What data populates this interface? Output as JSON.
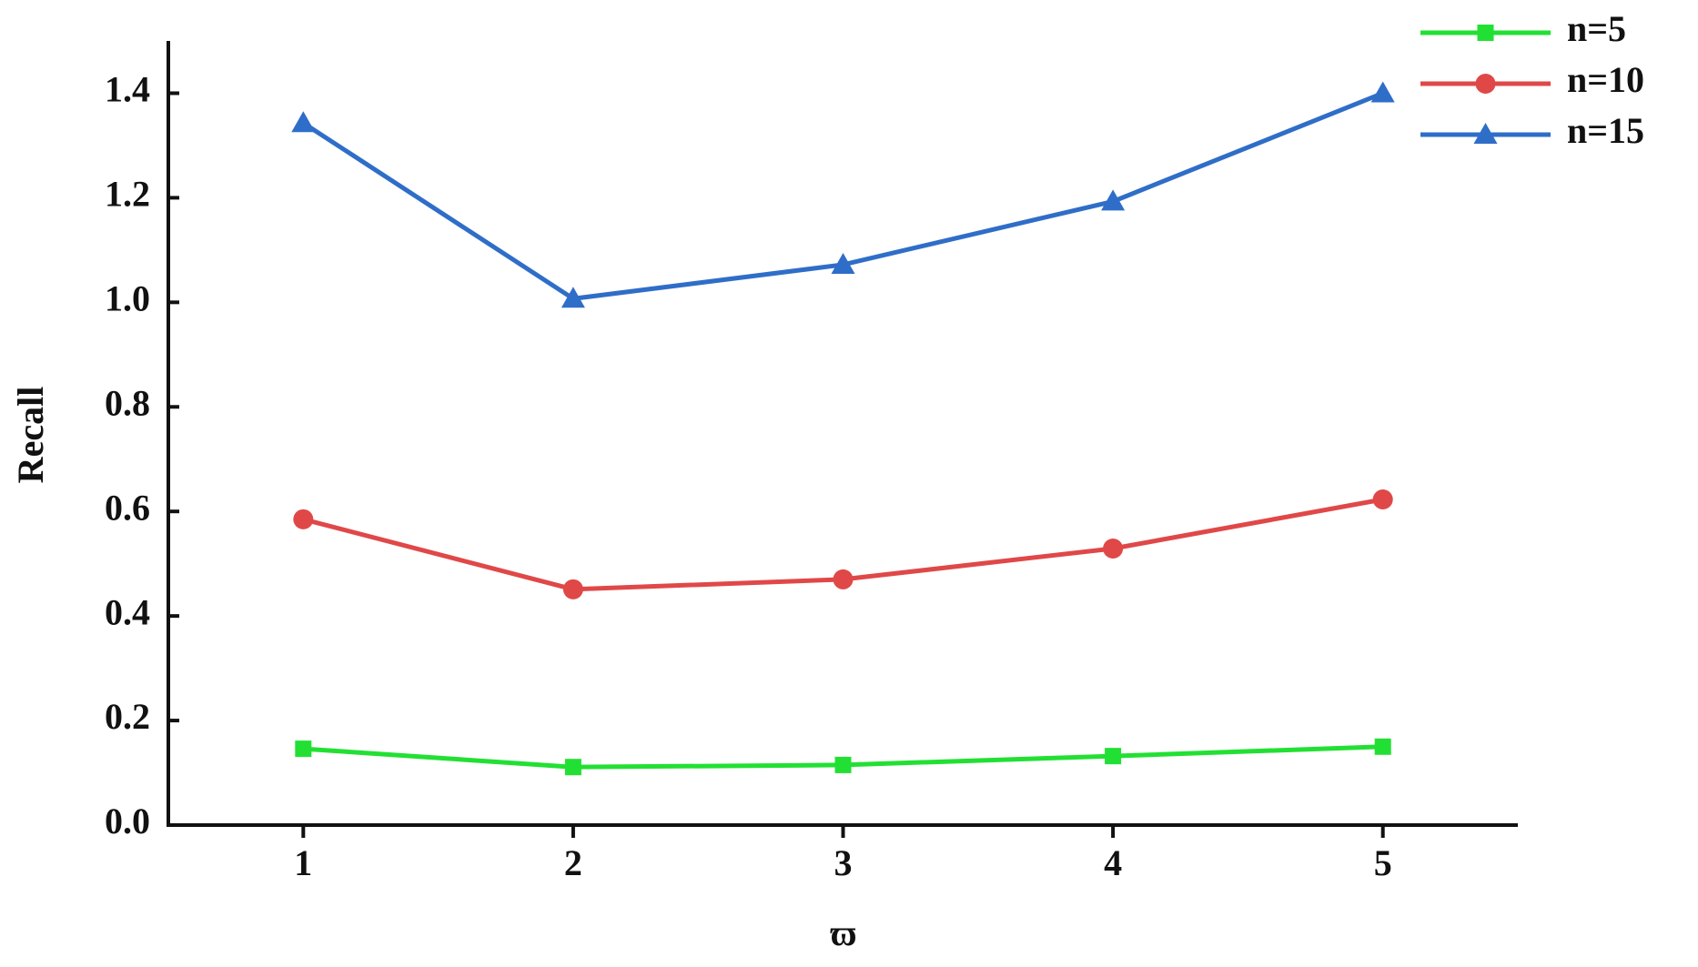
{
  "chart_data": {
    "type": "line",
    "x_label": "ϖ",
    "y_label": "Recall",
    "x": [
      1,
      2,
      3,
      4,
      5
    ],
    "xlim": [
      0.5,
      5.5
    ],
    "xticks": [
      1,
      2,
      3,
      4,
      5
    ],
    "ylim": [
      0,
      1.5
    ],
    "yticks": [
      {
        "value": 0,
        "label": "0.0"
      },
      0.2,
      0.4,
      0.6,
      0.8,
      {
        "value": 1,
        "label": "1.0"
      },
      1.2,
      1.4
    ],
    "legend": "top-right",
    "series": [
      {
        "name": "n=5",
        "color": "#22e033",
        "marker": "square",
        "values": [
          0.146,
          0.111,
          0.115,
          0.132,
          0.15
        ]
      },
      {
        "name": "n=10",
        "color": "#e04848",
        "marker": "circle",
        "values": [
          0.585,
          0.451,
          0.47,
          0.529,
          0.623
        ]
      },
      {
        "name": "n=15",
        "color": "#2f6ec8",
        "marker": "triangle",
        "values": [
          1.343,
          1.007,
          1.072,
          1.193,
          1.4
        ]
      }
    ]
  }
}
